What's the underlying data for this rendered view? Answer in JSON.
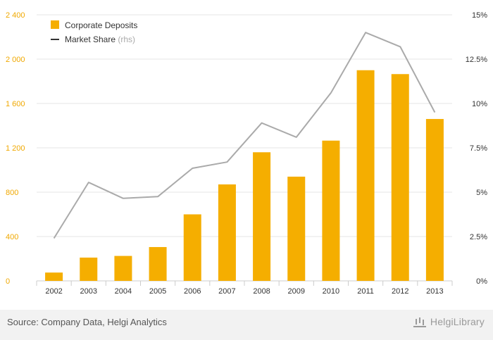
{
  "chart_data": {
    "type": "bar+line",
    "categories": [
      "2002",
      "2003",
      "2004",
      "2005",
      "2006",
      "2007",
      "2008",
      "2009",
      "2010",
      "2011",
      "2012",
      "2013"
    ],
    "series": [
      {
        "name": "Corporate Deposits",
        "kind": "bar",
        "axis": "left",
        "color": "#f5ae00",
        "values": [
          75,
          210,
          225,
          305,
          600,
          870,
          1160,
          940,
          1265,
          1900,
          1865,
          1460
        ]
      },
      {
        "name": "Market Share",
        "name_suffix": "(rhs)",
        "kind": "line",
        "axis": "right",
        "color": "#aaaaaa",
        "values": [
          2.4,
          5.55,
          4.65,
          4.75,
          6.35,
          6.7,
          8.9,
          8.1,
          10.6,
          14.0,
          13.2,
          9.5
        ]
      }
    ],
    "y_left": {
      "ylim": [
        0,
        2400
      ],
      "ticks": [
        0,
        400,
        800,
        1200,
        1600,
        2000,
        2400
      ],
      "tick_labels": [
        "0",
        "400",
        "800",
        "1 200",
        "1 600",
        "2 000",
        "2 400"
      ]
    },
    "y_right": {
      "ylim": [
        0,
        15
      ],
      "ticks": [
        0,
        2.5,
        5,
        7.5,
        10,
        12.5,
        15
      ],
      "tick_labels": [
        "0%",
        "2.5%",
        "5%",
        "7.5%",
        "10%",
        "12.5%",
        "15%"
      ]
    },
    "grid": true,
    "legend_position": "top-left"
  },
  "footer": {
    "source": "Source: Company Data, Helgi Analytics",
    "brand": "HelgiLibrary"
  }
}
